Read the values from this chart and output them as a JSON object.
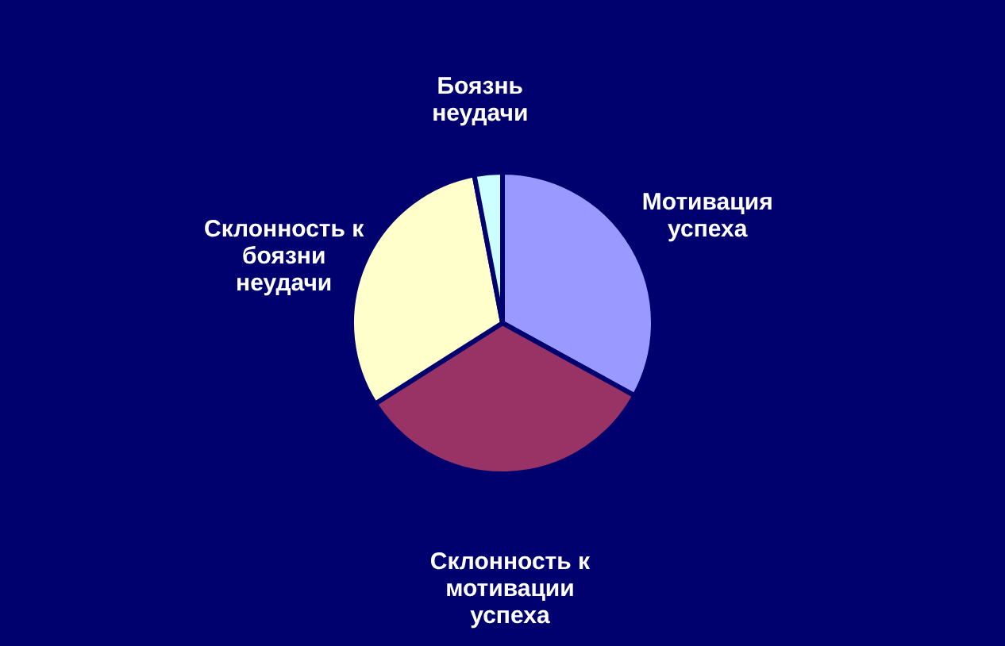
{
  "chart_data": {
    "type": "pie",
    "categories": [
      "Мотивация успеха",
      "Склонность к мотивации успеха",
      "Склонность к боязни неудачи",
      "Боязнь неудачи"
    ],
    "values": [
      33,
      33,
      31,
      3
    ],
    "colors": [
      "#9999ff",
      "#993366",
      "#ffffcc",
      "#ccffff"
    ]
  }
}
